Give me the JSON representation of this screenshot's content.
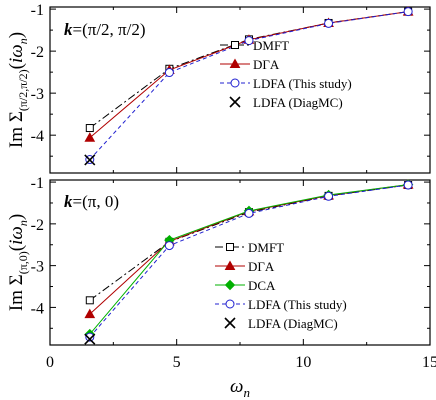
{
  "chart_data": [
    {
      "type": "line",
      "panel_label": "=(π/2, π/2)",
      "panel_label_prefix": "k",
      "ylabel": "Im Σ(π/2,π/2)(iωn)",
      "xlabel": "",
      "xlim": [
        0,
        15
      ],
      "ylim": [
        -4.9,
        -0.95
      ],
      "yticks": [
        -1,
        -2,
        -3,
        -4
      ],
      "ytick_labels": [
        "-1",
        "-2",
        "-3",
        "-4"
      ],
      "xticks": [
        0,
        5,
        10,
        15
      ],
      "xtick_labels": [],
      "legend_placement": "center-right",
      "series": [
        {
          "name": "DMFT",
          "color": "#000000",
          "dash": "8 3 2 3",
          "marker": "square",
          "filled": false,
          "x": [
            1.571,
            4.712,
            7.854,
            10.996,
            14.137
          ],
          "y": [
            -3.83,
            -2.42,
            -1.72,
            -1.33,
            -1.06
          ]
        },
        {
          "name": "DΓA",
          "color": "#b00000",
          "dash": "",
          "marker": "triangle",
          "filled": true,
          "x": [
            1.571,
            4.712,
            7.854,
            10.996,
            14.137
          ],
          "y": [
            -4.06,
            -2.45,
            -1.73,
            -1.33,
            -1.06
          ]
        },
        {
          "name": "LDFA (This study)",
          "color": "#2020d0",
          "dash": "4 3",
          "marker": "circle",
          "filled": false,
          "x": [
            1.571,
            4.712,
            7.854,
            10.996,
            14.137
          ],
          "y": [
            -4.58,
            -2.51,
            -1.75,
            -1.34,
            -1.06
          ]
        },
        {
          "name": "LDFA (DiagMC)",
          "color": "#000000",
          "dash": "",
          "marker": "cross",
          "filled": false,
          "no_line": true,
          "x": [
            1.571
          ],
          "y": [
            -4.59
          ]
        }
      ]
    },
    {
      "type": "line",
      "panel_label": "=(π, 0)",
      "panel_label_prefix": "k",
      "ylabel": "Im Σ(π,0)(iωn)",
      "xlabel": "ωn",
      "xlim": [
        0,
        15
      ],
      "ylim": [
        -4.9,
        -0.95
      ],
      "yticks": [
        -1,
        -2,
        -3,
        -4
      ],
      "ytick_labels": [
        "-1",
        "-2",
        "-3",
        "-4"
      ],
      "xticks": [
        0,
        5,
        10,
        15
      ],
      "xtick_labels": [
        "0",
        "5",
        "10",
        "15"
      ],
      "legend_placement": "center-right",
      "series": [
        {
          "name": "DMFT",
          "color": "#000000",
          "dash": "8 3 2 3",
          "marker": "square",
          "filled": false,
          "x": [
            1.571,
            4.712,
            7.854,
            10.996,
            14.137
          ],
          "y": [
            -3.83,
            -2.43,
            -1.72,
            -1.33,
            -1.07
          ]
        },
        {
          "name": "DΓA",
          "color": "#b00000",
          "dash": "",
          "marker": "triangle",
          "filled": true,
          "x": [
            1.571,
            4.712,
            7.854,
            10.996,
            14.137
          ],
          "y": [
            -4.16,
            -2.42,
            -1.7,
            -1.32,
            -1.06
          ]
        },
        {
          "name": "DCA",
          "color": "#00b000",
          "dash": "",
          "marker": "diamond",
          "filled": true,
          "x": [
            1.571,
            4.712,
            7.854,
            10.996,
            14.137
          ],
          "y": [
            -4.64,
            -2.39,
            -1.69,
            -1.31,
            -1.06
          ]
        },
        {
          "name": "LDFA (This study)",
          "color": "#2020d0",
          "dash": "4 3",
          "marker": "circle",
          "filled": false,
          "x": [
            1.571,
            4.712,
            7.854,
            10.996,
            14.137
          ],
          "y": [
            -4.71,
            -2.52,
            -1.75,
            -1.34,
            -1.07
          ]
        },
        {
          "name": "LDFA (DiagMC)",
          "color": "#000000",
          "dash": "",
          "marker": "cross",
          "filled": false,
          "no_line": true,
          "x": [
            1.571
          ],
          "y": [
            -4.76
          ]
        }
      ]
    }
  ]
}
